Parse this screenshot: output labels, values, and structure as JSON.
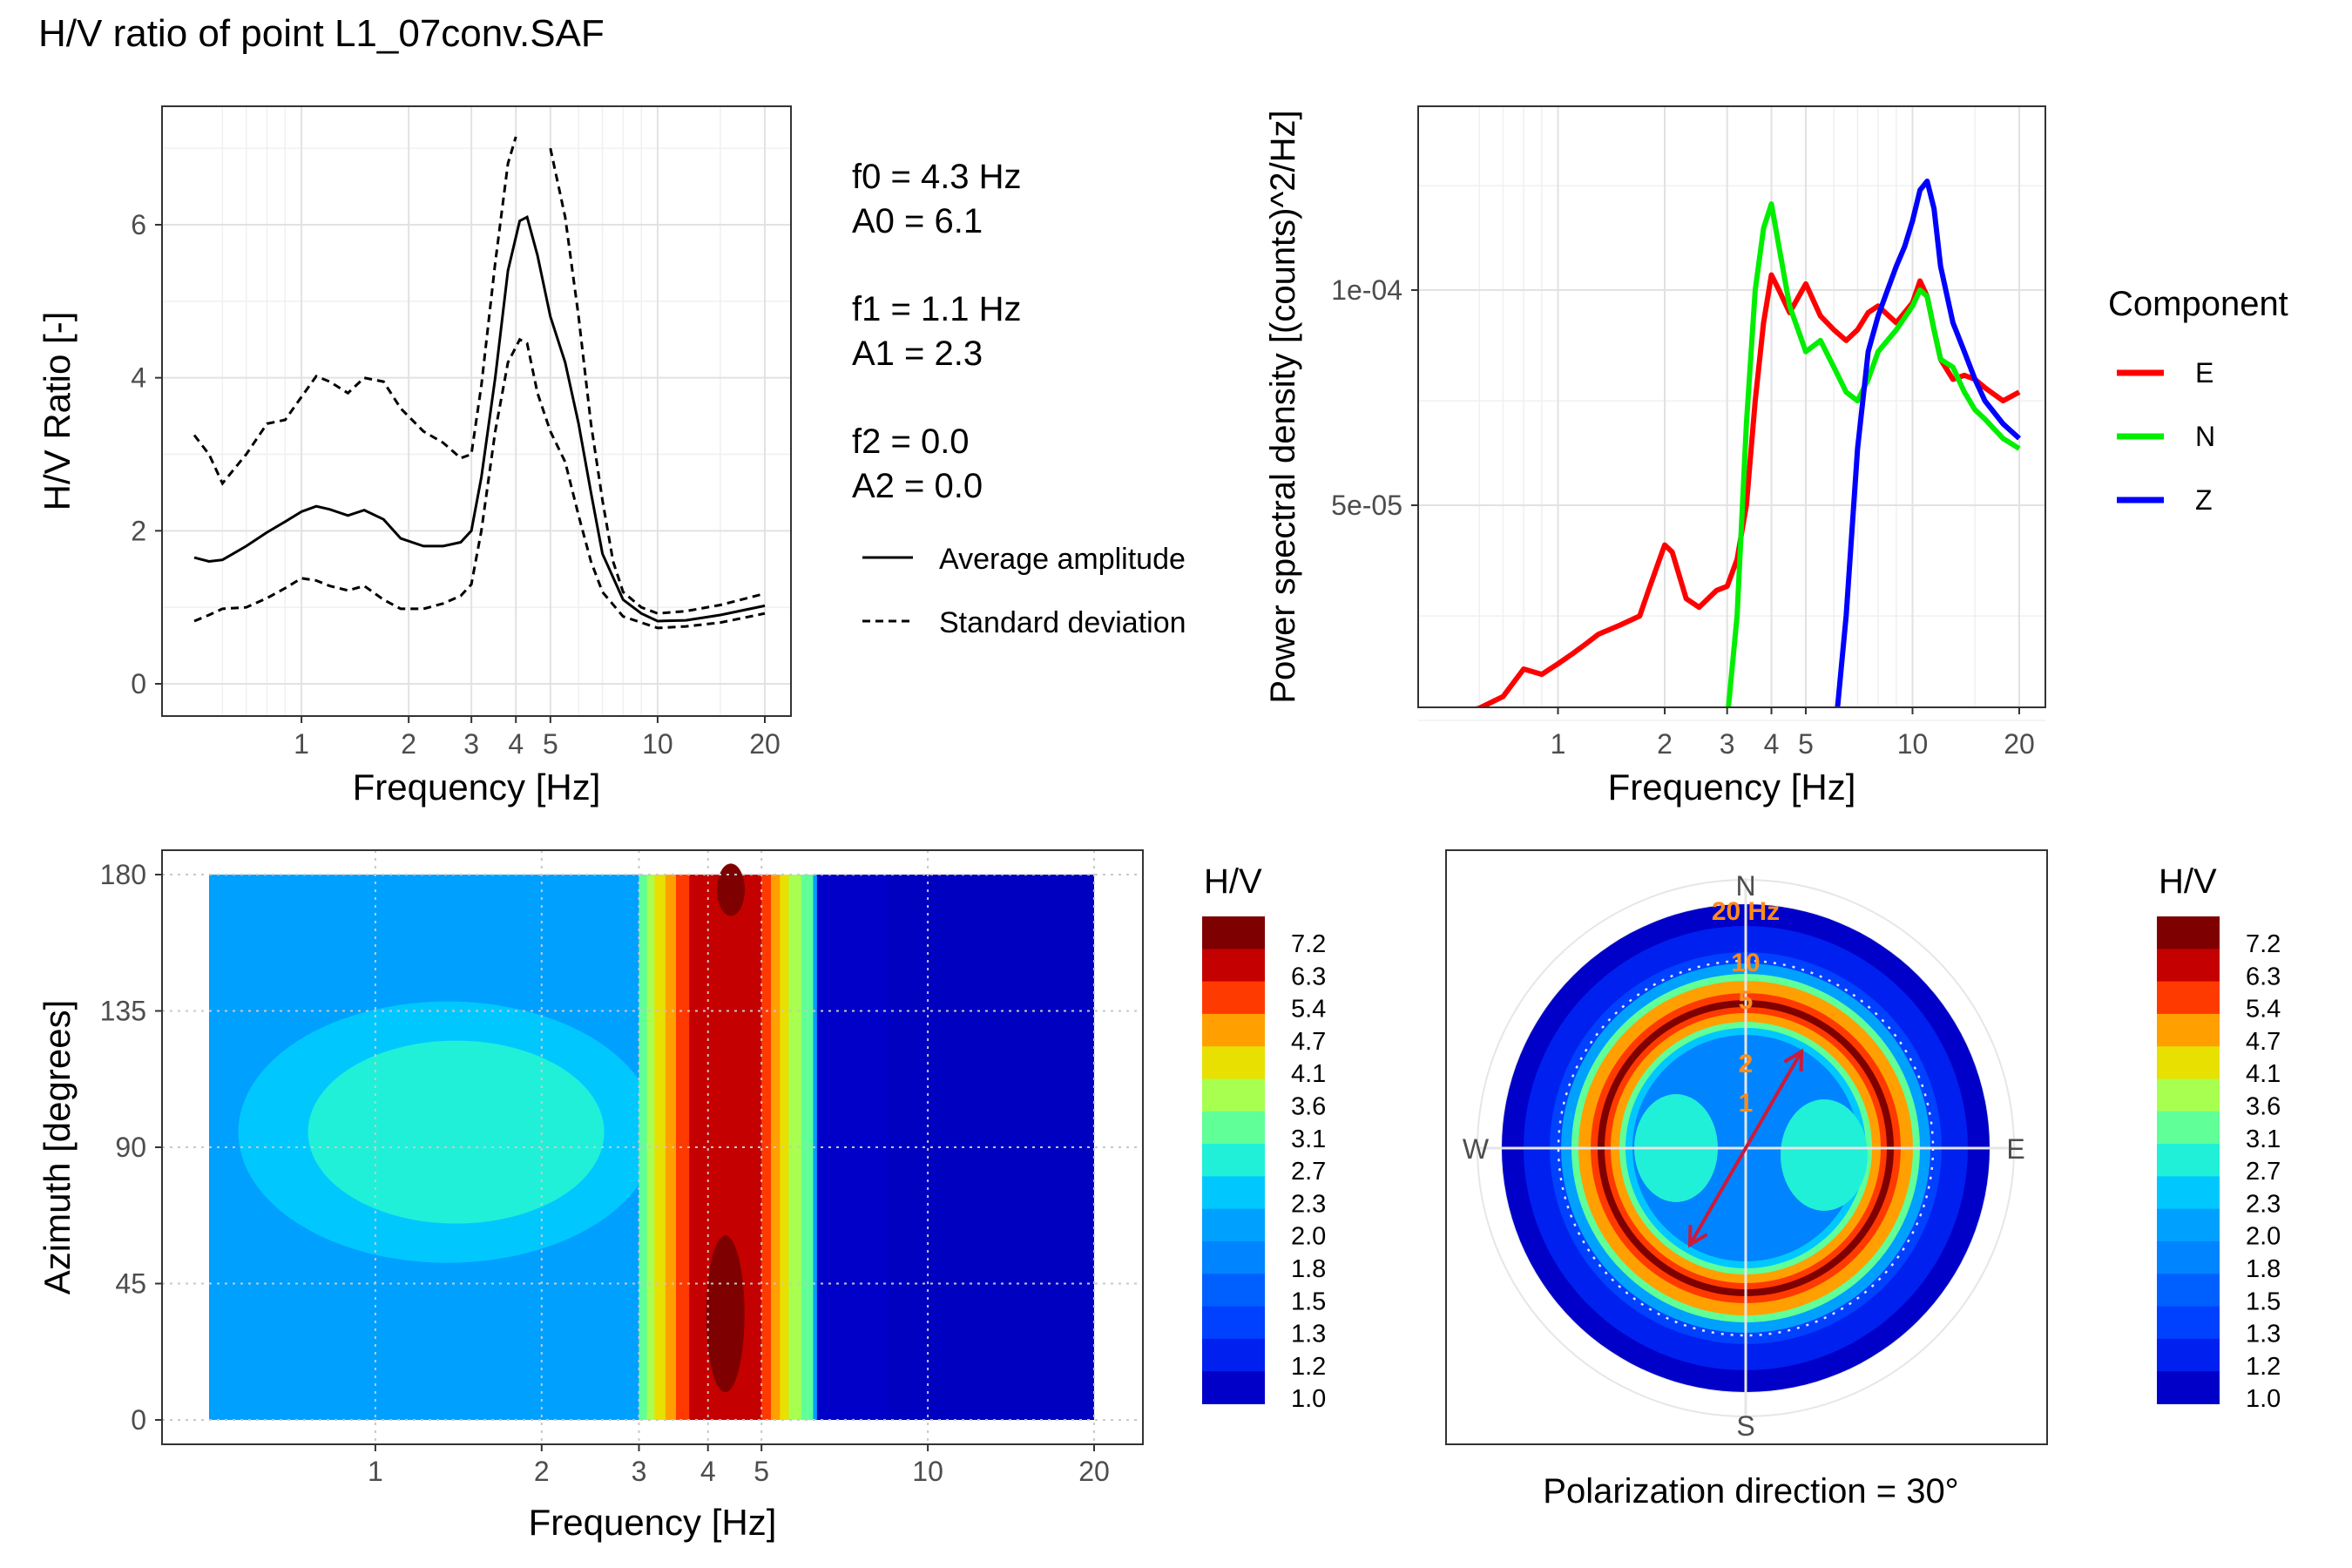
{
  "title": "H/V ratio of point L1_07conv.SAF",
  "stats": [
    {
      "label": "f0 = 4.3 Hz"
    },
    {
      "label": "A0 = 6.1"
    },
    {
      "label": "f1 = 1.1 Hz"
    },
    {
      "label": "A1 = 2.3"
    },
    {
      "label": "f2 = 0.0"
    },
    {
      "label": "A2 = 0.0"
    }
  ],
  "polarization_caption": "Polarization direction = 30°",
  "colors": {
    "E": "#ff0000",
    "N": "#00ee00",
    "Z": "#0000ff",
    "arrow": "#cc1a3a",
    "radial_labels": "#ff8c1a"
  },
  "chart_data": [
    {
      "type": "line",
      "xlabel": "Frequency [Hz]",
      "ylabel": "H/V Ratio [-]",
      "x_scale": "log",
      "xlim": [
        0.5,
        20
      ],
      "ylim": [
        0,
        7.2
      ],
      "x_ticks": [
        1,
        2,
        3,
        4,
        5,
        10,
        20
      ],
      "y_ticks": [
        0,
        2,
        4,
        6
      ],
      "grid": true,
      "legend": [
        {
          "label": "Average amplitude",
          "style": "solid"
        },
        {
          "label": "Standard deviation",
          "style": "dashed"
        }
      ],
      "series": [
        {
          "name": "Average amplitude",
          "style": "solid",
          "x": [
            0.5,
            0.55,
            0.6,
            0.7,
            0.8,
            0.9,
            1.0,
            1.1,
            1.2,
            1.35,
            1.5,
            1.7,
            1.9,
            2.2,
            2.5,
            2.8,
            3.0,
            3.2,
            3.5,
            3.8,
            4.1,
            4.3,
            4.6,
            5.0,
            5.5,
            6.0,
            6.5,
            7.0,
            8.0,
            9.0,
            10.0,
            12.0,
            15.0,
            20.0
          ],
          "y": [
            1.65,
            1.6,
            1.62,
            1.8,
            1.98,
            2.12,
            2.25,
            2.32,
            2.28,
            2.2,
            2.27,
            2.15,
            1.9,
            1.8,
            1.8,
            1.85,
            2.0,
            2.7,
            4.0,
            5.4,
            6.05,
            6.1,
            5.6,
            4.8,
            4.2,
            3.4,
            2.5,
            1.7,
            1.1,
            0.92,
            0.82,
            0.83,
            0.9,
            1.02
          ]
        },
        {
          "name": "Standard deviation (upper)",
          "style": "dashed",
          "x": [
            0.5,
            0.55,
            0.6,
            0.7,
            0.8,
            0.9,
            1.0,
            1.1,
            1.2,
            1.35,
            1.5,
            1.7,
            1.9,
            2.2,
            2.5,
            2.8,
            3.0,
            3.2,
            3.5,
            3.8,
            4.0
          ],
          "y": [
            3.25,
            3.0,
            2.62,
            3.0,
            3.4,
            3.45,
            3.75,
            4.02,
            3.95,
            3.8,
            4.0,
            3.95,
            3.6,
            3.3,
            3.15,
            2.95,
            3.0,
            3.9,
            5.5,
            6.8,
            7.15
          ]
        },
        {
          "name": "Standard deviation (upper, right)",
          "style": "dashed",
          "x": [
            5.0,
            5.5,
            6.0,
            6.5,
            7.0,
            7.5,
            8.0,
            9.0,
            10.0,
            12.0,
            15.0,
            20.0
          ],
          "y": [
            7.0,
            6.1,
            4.8,
            3.4,
            2.4,
            1.6,
            1.2,
            1.0,
            0.92,
            0.95,
            1.03,
            1.18
          ]
        },
        {
          "name": "Standard deviation (lower)",
          "style": "dashed",
          "x": [
            0.5,
            0.55,
            0.6,
            0.7,
            0.8,
            0.9,
            1.0,
            1.1,
            1.2,
            1.35,
            1.5,
            1.7,
            1.9,
            2.2,
            2.5,
            2.8,
            3.0,
            3.2,
            3.5,
            3.8,
            4.1,
            4.3,
            4.6,
            5.0,
            5.5,
            6.0,
            6.5,
            7.0,
            8.0,
            9.0,
            10.0,
            12.0,
            15.0,
            20.0
          ],
          "y": [
            0.82,
            0.9,
            0.98,
            1.0,
            1.12,
            1.25,
            1.38,
            1.35,
            1.28,
            1.22,
            1.28,
            1.1,
            0.98,
            0.98,
            1.05,
            1.15,
            1.3,
            2.0,
            3.3,
            4.2,
            4.5,
            4.45,
            3.8,
            3.3,
            2.9,
            2.2,
            1.6,
            1.2,
            0.88,
            0.8,
            0.73,
            0.75,
            0.8,
            0.92
          ]
        }
      ]
    },
    {
      "type": "line",
      "xlabel": "Frequency [Hz]",
      "ylabel": "Power spectral density [(counts)^2/Hz]",
      "x_scale": "log",
      "y_scale": "log",
      "xlim": [
        0.5,
        20
      ],
      "ylim": [
        1.2e-05,
        0.00016
      ],
      "x_ticks": [
        1,
        2,
        3,
        4,
        5,
        10,
        20
      ],
      "y_ticks": [
        {
          "value": 5e-05,
          "label": "5e-05"
        },
        {
          "value": 0.0001,
          "label": "1e-04"
        }
      ],
      "grid": true,
      "legend_title": "Component",
      "legend_position": "right",
      "series": [
        {
          "name": "E",
          "color": "#ff0000",
          "x": [
            0.5,
            0.6,
            0.7,
            0.8,
            0.9,
            1.0,
            1.1,
            1.2,
            1.3,
            1.5,
            1.7,
            1.8,
            1.9,
            2.0,
            2.1,
            2.3,
            2.5,
            2.8,
            3.0,
            3.2,
            3.4,
            3.6,
            3.8,
            4.0,
            4.2,
            4.5,
            5.0,
            5.5,
            6.0,
            6.5,
            7.0,
            7.5,
            8.0,
            9.0,
            10.0,
            10.5,
            11.0,
            11.5,
            12.0,
            13.0,
            14.0,
            15.0,
            16.0,
            18.0,
            20.0
          ],
          "y": [
            2.55e-05,
            2.6e-05,
            2.7e-05,
            2.95e-05,
            2.9e-05,
            3e-05,
            3.1e-05,
            3.2e-05,
            3.3e-05,
            3.4e-05,
            3.5e-05,
            3.8e-05,
            4.1e-05,
            4.4e-05,
            4.3e-05,
            3.7e-05,
            3.6e-05,
            3.8e-05,
            3.85e-05,
            4.2e-05,
            5e-05,
            7e-05,
            9e-05,
            0.000105,
            0.0001,
            9.3e-05,
            0.000102,
            9.2e-05,
            8.8e-05,
            8.5e-05,
            8.8e-05,
            9.3e-05,
            9.5e-05,
            9e-05,
            9.6e-05,
            0.000103,
            9.8e-05,
            8.8e-05,
            8e-05,
            7.5e-05,
            7.6e-05,
            7.5e-05,
            7.3e-05,
            7e-05,
            7.2e-05
          ]
        },
        {
          "name": "N",
          "color": "#00ee00",
          "x": [
            0.5,
            0.6,
            0.7,
            0.8,
            0.9,
            1.0,
            1.1,
            1.2,
            1.4,
            1.6,
            1.8,
            2.0,
            2.2,
            2.5,
            2.8,
            3.0,
            3.2,
            3.4,
            3.6,
            3.8,
            4.0,
            4.2,
            4.5,
            5.0,
            5.5,
            6.0,
            6.5,
            7.0,
            7.5,
            8.0,
            9.0,
            10.0,
            10.5,
            11.0,
            11.5,
            12.0,
            13.0,
            14.0,
            15.0,
            16.0,
            18.0,
            20.0
          ],
          "y": [
            1.55e-05,
            1.6e-05,
            1.65e-05,
            1.8e-05,
            1.85e-05,
            2e-05,
            2e-05,
            2.1e-05,
            2.2e-05,
            2.15e-05,
            2.3e-05,
            2.3e-05,
            2.25e-05,
            2.3e-05,
            2.3e-05,
            2.5e-05,
            3.5e-05,
            6.5e-05,
            0.0001,
            0.000122,
            0.000132,
            0.000115,
            9.5e-05,
            8.2e-05,
            8.5e-05,
            7.8e-05,
            7.2e-05,
            7e-05,
            7.5e-05,
            8.2e-05,
            8.8e-05,
            9.5e-05,
            0.0001,
            9.8e-05,
            8.8e-05,
            8e-05,
            7.8e-05,
            7.2e-05,
            6.8e-05,
            6.6e-05,
            6.2e-05,
            6e-05
          ]
        },
        {
          "name": "Z",
          "color": "#0000ff",
          "x": [
            0.5,
            0.6,
            0.7,
            0.8,
            0.9,
            1.0,
            1.2,
            1.4,
            1.6,
            1.8,
            2.0,
            2.2,
            2.5,
            2.8,
            3.0,
            3.3,
            3.6,
            4.0,
            4.5,
            5.0,
            5.5,
            6.0,
            6.5,
            7.0,
            7.5,
            8.0,
            8.5,
            9.0,
            9.5,
            10.0,
            10.5,
            11.0,
            11.5,
            12.0,
            13.0,
            14.0,
            15.0,
            16.0,
            18.0,
            20.0
          ],
          "y": [
            1.35e-05,
            1.4e-05,
            1.4e-05,
            1.45e-05,
            1.42e-05,
            1.45e-05,
            1.42e-05,
            1.45e-05,
            1.48e-05,
            1.55e-05,
            1.65e-05,
            1.62e-05,
            1.6e-05,
            1.62e-05,
            1.6e-05,
            1.62e-05,
            1.7e-05,
            1.8e-05,
            1.85e-05,
            1.95e-05,
            2.05e-05,
            2.3e-05,
            3.5e-05,
            6e-05,
            8.2e-05,
            9.2e-05,
            0.0001,
            0.000108,
            0.000115,
            0.000125,
            0.000138,
            0.000142,
            0.00013,
            0.000108,
            9e-05,
            8.2e-05,
            7.5e-05,
            7e-05,
            6.5e-05,
            6.2e-05
          ]
        }
      ]
    },
    {
      "type": "heatmap",
      "xlabel": "Frequency [Hz]",
      "ylabel": "Azimuth [degrees]",
      "x_scale": "log",
      "xlim": [
        0.5,
        20
      ],
      "ylim": [
        0,
        180
      ],
      "x_ticks": [
        1,
        2,
        3,
        4,
        5,
        10,
        20
      ],
      "y_ticks": [
        0,
        45,
        90,
        135,
        180
      ],
      "legend_title": "H/V",
      "legend_levels": [
        "7.2",
        "6.3",
        "5.4",
        "4.7",
        "4.1",
        "3.6",
        "3.1",
        "2.7",
        "2.3",
        "2.0",
        "1.8",
        "1.5",
        "1.3",
        "1.2",
        "1.0"
      ],
      "level_colors": [
        "#7f0000",
        "#c40000",
        "#ff3a00",
        "#ffa000",
        "#e8e000",
        "#a8ff50",
        "#60ff98",
        "#20f0d8",
        "#00c8ff",
        "#00a0ff",
        "#0084ff",
        "#0060ff",
        "#0040ff",
        "#0020f0",
        "#0000c8"
      ],
      "grid": true
    },
    {
      "type": "heatmap",
      "subtype": "polar",
      "compass": [
        "N",
        "E",
        "S",
        "W"
      ],
      "radial_labels": [
        "20 Hz",
        "10",
        "5",
        "2",
        "1"
      ],
      "legend_title": "H/V",
      "legend_levels": [
        "7.2",
        "6.3",
        "5.4",
        "4.7",
        "4.1",
        "3.6",
        "3.1",
        "2.7",
        "2.3",
        "2.0",
        "1.8",
        "1.5",
        "1.3",
        "1.2",
        "1.0"
      ],
      "polarization_direction_deg": 30
    }
  ]
}
